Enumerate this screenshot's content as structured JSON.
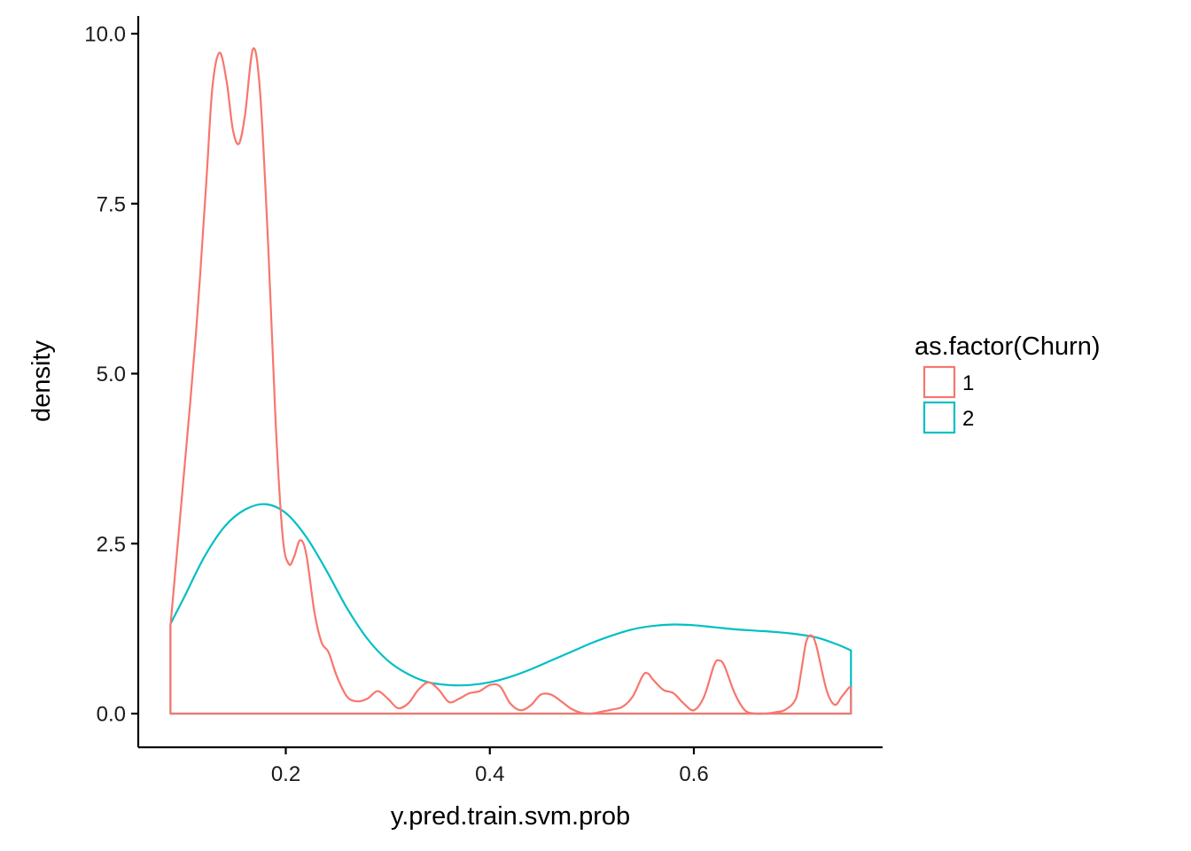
{
  "chart_data": {
    "type": "area",
    "subtype": "density",
    "xlabel": "y.pred.train.svm.prob",
    "ylabel": "density",
    "xlim": [
      0.055,
      0.78
    ],
    "ylim": [
      -0.5,
      10.5
    ],
    "x_ticks": [
      0.2,
      0.4,
      0.6
    ],
    "x_tick_labels": [
      "0.2",
      "0.4",
      "0.6"
    ],
    "y_ticks": [
      0,
      2.5,
      5,
      7.5,
      10
    ],
    "y_tick_labels": [
      "0.0",
      "2.5",
      "5.0",
      "7.5",
      "10.0"
    ],
    "grid": false,
    "legend": {
      "title": "as.factor(Churn)",
      "position": "right"
    },
    "series": [
      {
        "name": "1",
        "color": "#F8766D",
        "points": [
          [
            0.087,
            1.3
          ],
          [
            0.1,
            3.5
          ],
          [
            0.112,
            5.6
          ],
          [
            0.122,
            7.8
          ],
          [
            0.128,
            9.2
          ],
          [
            0.135,
            9.72
          ],
          [
            0.142,
            9.3
          ],
          [
            0.148,
            8.6
          ],
          [
            0.154,
            8.38
          ],
          [
            0.16,
            8.8
          ],
          [
            0.168,
            9.78
          ],
          [
            0.175,
            9.1
          ],
          [
            0.183,
            6.8
          ],
          [
            0.19,
            4.3
          ],
          [
            0.197,
            2.6
          ],
          [
            0.203,
            2.2
          ],
          [
            0.208,
            2.3
          ],
          [
            0.214,
            2.55
          ],
          [
            0.22,
            2.35
          ],
          [
            0.228,
            1.5
          ],
          [
            0.235,
            1.05
          ],
          [
            0.242,
            0.9
          ],
          [
            0.25,
            0.55
          ],
          [
            0.26,
            0.25
          ],
          [
            0.27,
            0.18
          ],
          [
            0.28,
            0.22
          ],
          [
            0.29,
            0.33
          ],
          [
            0.3,
            0.22
          ],
          [
            0.31,
            0.08
          ],
          [
            0.32,
            0.15
          ],
          [
            0.33,
            0.35
          ],
          [
            0.34,
            0.46
          ],
          [
            0.35,
            0.35
          ],
          [
            0.36,
            0.17
          ],
          [
            0.37,
            0.22
          ],
          [
            0.38,
            0.3
          ],
          [
            0.39,
            0.33
          ],
          [
            0.4,
            0.42
          ],
          [
            0.41,
            0.4
          ],
          [
            0.42,
            0.15
          ],
          [
            0.43,
            0.05
          ],
          [
            0.44,
            0.12
          ],
          [
            0.45,
            0.28
          ],
          [
            0.46,
            0.28
          ],
          [
            0.47,
            0.18
          ],
          [
            0.48,
            0.07
          ],
          [
            0.49,
            0.01
          ],
          [
            0.5,
            0.0
          ],
          [
            0.51,
            0.03
          ],
          [
            0.52,
            0.06
          ],
          [
            0.53,
            0.1
          ],
          [
            0.54,
            0.25
          ],
          [
            0.55,
            0.56
          ],
          [
            0.555,
            0.59
          ],
          [
            0.56,
            0.5
          ],
          [
            0.57,
            0.35
          ],
          [
            0.58,
            0.3
          ],
          [
            0.59,
            0.15
          ],
          [
            0.6,
            0.05
          ],
          [
            0.61,
            0.25
          ],
          [
            0.62,
            0.72
          ],
          [
            0.625,
            0.78
          ],
          [
            0.63,
            0.7
          ],
          [
            0.64,
            0.3
          ],
          [
            0.65,
            0.05
          ],
          [
            0.66,
            0.0
          ],
          [
            0.67,
            0.0
          ],
          [
            0.68,
            0.02
          ],
          [
            0.69,
            0.06
          ],
          [
            0.7,
            0.22
          ],
          [
            0.705,
            0.6
          ],
          [
            0.71,
            1.05
          ],
          [
            0.715,
            1.15
          ],
          [
            0.72,
            1.0
          ],
          [
            0.73,
            0.35
          ],
          [
            0.738,
            0.13
          ],
          [
            0.745,
            0.25
          ],
          [
            0.752,
            0.38
          ],
          [
            0.754,
            0.38
          ]
        ]
      },
      {
        "name": "2",
        "color": "#00BFC4",
        "points": [
          [
            0.087,
            1.32
          ],
          [
            0.1,
            1.7
          ],
          [
            0.12,
            2.3
          ],
          [
            0.14,
            2.75
          ],
          [
            0.16,
            3.0
          ],
          [
            0.18,
            3.08
          ],
          [
            0.2,
            2.95
          ],
          [
            0.22,
            2.6
          ],
          [
            0.24,
            2.1
          ],
          [
            0.26,
            1.55
          ],
          [
            0.28,
            1.1
          ],
          [
            0.3,
            0.78
          ],
          [
            0.32,
            0.58
          ],
          [
            0.34,
            0.46
          ],
          [
            0.36,
            0.42
          ],
          [
            0.38,
            0.42
          ],
          [
            0.4,
            0.46
          ],
          [
            0.42,
            0.54
          ],
          [
            0.44,
            0.65
          ],
          [
            0.46,
            0.78
          ],
          [
            0.48,
            0.91
          ],
          [
            0.5,
            1.04
          ],
          [
            0.52,
            1.15
          ],
          [
            0.54,
            1.24
          ],
          [
            0.56,
            1.29
          ],
          [
            0.58,
            1.31
          ],
          [
            0.6,
            1.3
          ],
          [
            0.62,
            1.27
          ],
          [
            0.64,
            1.24
          ],
          [
            0.66,
            1.22
          ],
          [
            0.68,
            1.2
          ],
          [
            0.7,
            1.17
          ],
          [
            0.72,
            1.12
          ],
          [
            0.74,
            1.02
          ],
          [
            0.754,
            0.93
          ]
        ]
      }
    ]
  }
}
